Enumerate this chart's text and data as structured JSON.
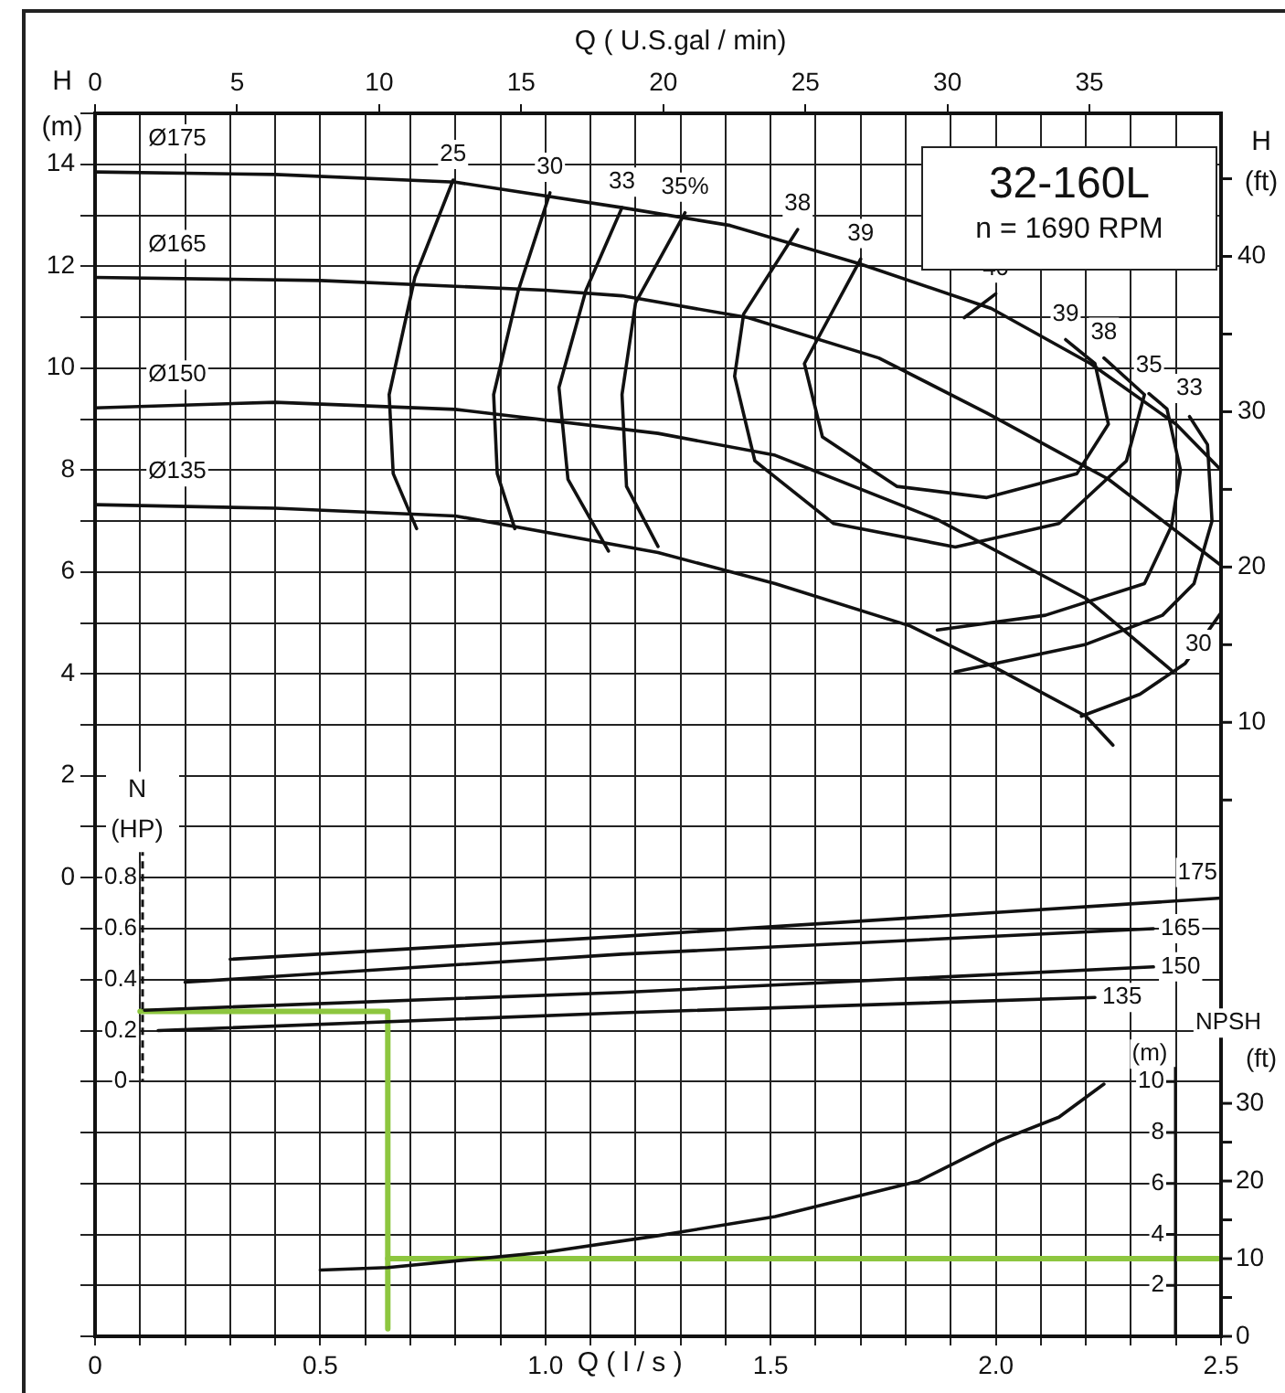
{
  "chart_data": [
    {
      "type": "line",
      "title": "32-160L",
      "subtitle": "n = 1690 RPM",
      "xlabel": "Q ( l / s )",
      "x2label": "Q ( U.S.gal / min)",
      "ylabel": "H (m)",
      "y2label": "H (ft)",
      "y3label": "N (HP)",
      "xlim": [
        0,
        2.5
      ],
      "xticks": [
        0,
        {
          "value": 0.1,
          "label": null
        },
        {
          "value": 0.2,
          "label": null
        },
        {
          "value": 0.3,
          "label": null
        },
        {
          "value": 0.4,
          "label": null
        },
        0.5,
        {
          "value": 0.6,
          "label": null
        },
        {
          "value": 0.7,
          "label": null
        },
        {
          "value": 0.8,
          "label": null
        },
        {
          "value": 0.9,
          "label": null
        },
        {
          "value": 1,
          "label": "1.0"
        },
        {
          "value": 1.1,
          "label": null
        },
        {
          "value": 1.2,
          "label": null
        },
        {
          "value": 1.3,
          "label": null
        },
        {
          "value": 1.4,
          "label": null
        },
        1.5,
        {
          "value": 1.6,
          "label": null
        },
        {
          "value": 1.7,
          "label": null
        },
        {
          "value": 1.8,
          "label": null
        },
        {
          "value": 1.9,
          "label": null
        },
        {
          "value": 2,
          "label": "2.0"
        },
        {
          "value": 2.1,
          "label": null
        },
        {
          "value": 2.2,
          "label": null
        },
        {
          "value": 2.3,
          "label": null
        },
        {
          "value": 2.4,
          "label": null
        },
        2.5
      ],
      "x2lim": [
        0,
        39.63
      ],
      "x2ticks": [
        0,
        5,
        10,
        15,
        20,
        25,
        30,
        35
      ],
      "ylim": [
        -9,
        15
      ],
      "yticks": [
        {
          "value": -9,
          "label": null
        },
        {
          "value": -8,
          "label": null
        },
        {
          "value": -7,
          "label": null
        },
        {
          "value": -6,
          "label": null
        },
        {
          "value": -5,
          "label": null
        },
        {
          "value": -4,
          "label": null
        },
        {
          "value": -3,
          "label": null
        },
        {
          "value": -2,
          "label": null
        },
        {
          "value": -1,
          "label": null
        },
        0,
        {
          "value": 1,
          "label": null
        },
        2,
        {
          "value": 3,
          "label": null
        },
        4,
        {
          "value": 5,
          "label": null
        },
        6,
        {
          "value": 7,
          "label": null
        },
        8,
        {
          "value": 9,
          "label": null
        },
        10,
        {
          "value": 11,
          "label": null
        },
        12,
        {
          "value": 13,
          "label": null
        },
        14,
        {
          "value": 15,
          "label": null
        }
      ],
      "y2lim": [
        -29.53,
        49.21
      ],
      "y2ticks": [
        {
          "value": 5,
          "label": null
        },
        10,
        {
          "value": 15,
          "label": null
        },
        20,
        {
          "value": 25,
          "label": null
        },
        30,
        {
          "value": 35,
          "label": null
        },
        40,
        {
          "value": 45,
          "label": null
        }
      ],
      "y3lim": [
        -1,
        3.8
      ],
      "y3ticks": [
        0,
        0.2,
        0.4,
        0.6,
        0.8
      ],
      "grid": true,
      "legend": false,
      "marker": "none",
      "line_style": "solid",
      "series": [
        {
          "name": "Ø175",
          "color": "#111111",
          "x": [
            0,
            0.4,
            0.8,
            1.17,
            1.41,
            1.7,
            1.99,
            2.21,
            2.4,
            2.5
          ],
          "values": [
            13.85,
            13.8,
            13.65,
            13.15,
            12.8,
            12.04,
            11.17,
            10.09,
            8.9,
            8.0
          ]
        },
        {
          "name": "Ø165",
          "color": "#111111",
          "x": [
            0,
            0.5,
            1.0,
            1.17,
            1.45,
            1.74,
            1.98,
            2.25,
            2.5
          ],
          "values": [
            11.78,
            11.72,
            11.53,
            11.42,
            10.99,
            10.2,
            9.12,
            7.82,
            6.13
          ]
        },
        {
          "name": "Ø150",
          "color": "#111111",
          "x": [
            0,
            0.4,
            0.8,
            1.25,
            1.51,
            1.87,
            2.2,
            2.39
          ],
          "values": [
            9.22,
            9.33,
            9.19,
            8.72,
            8.29,
            7.03,
            5.48,
            4.07
          ]
        },
        {
          "name": "Ø135",
          "color": "#111111",
          "x": [
            0,
            0.4,
            0.8,
            1.25,
            1.51,
            1.81,
            2.01,
            2.2,
            2.26
          ],
          "values": [
            7.32,
            7.25,
            7.1,
            6.38,
            5.77,
            4.94,
            4.07,
            3.17,
            2.6
          ]
        },
        {
          "name": "25",
          "color": "#111111",
          "x": [
            0.795,
            0.71,
            0.653,
            0.662,
            0.714
          ],
          "values": [
            13.69,
            11.78,
            9.48,
            7.93,
            6.85
          ]
        },
        {
          "name": "30",
          "color": "#111111",
          "x": [
            1.01,
            0.94,
            0.885,
            0.893,
            0.932
          ],
          "values": [
            13.44,
            11.53,
            9.48,
            7.93,
            6.85
          ]
        },
        {
          "name": "33",
          "color": "#111111",
          "x": [
            1.17,
            1.09,
            1.03,
            1.05,
            1.14
          ],
          "values": [
            13.15,
            11.53,
            9.62,
            7.82,
            6.41
          ]
        },
        {
          "name": "35%",
          "color": "#111111",
          "x": [
            1.31,
            1.2,
            1.17,
            1.18,
            1.25
          ],
          "values": [
            13.05,
            11.28,
            9.48,
            7.68,
            6.5
          ]
        },
        {
          "name": "38",
          "color": "#111111",
          "x": [
            1.56,
            1.44,
            1.42,
            1.465,
            1.64,
            1.91,
            2.14,
            2.29,
            2.33,
            2.24
          ],
          "values": [
            12.72,
            11.06,
            9.84,
            8.18,
            6.95,
            6.49,
            6.95,
            8.18,
            9.48,
            10.2
          ]
        },
        {
          "name": "39",
          "color": "#111111",
          "x": [
            1.7,
            1.575,
            1.615,
            1.78,
            1.98,
            2.18,
            2.25,
            2.22,
            2.155
          ],
          "values": [
            12.14,
            10.09,
            8.65,
            7.68,
            7.46,
            7.93,
            8.9,
            10.09,
            10.56
          ]
        },
        {
          "name": "40",
          "color": "#111111",
          "x": [
            2.0,
            1.93
          ],
          "values": [
            11.46,
            10.99
          ]
        },
        {
          "color": "#111111",
          "x": [
            1.87,
            2.11,
            2.33,
            2.39,
            2.41,
            2.38,
            2.34
          ],
          "values": [
            4.86,
            5.15,
            5.77,
            6.9,
            8.0,
            9.2,
            9.5
          ]
        },
        {
          "color": "#111111",
          "x": [
            1.91,
            2.2,
            2.37,
            2.44,
            2.48,
            2.47,
            2.43
          ],
          "values": [
            4.04,
            4.58,
            5.15,
            5.77,
            7.0,
            8.5,
            9.05
          ]
        },
        {
          "color": "#111111",
          "x": [
            2.19,
            2.32,
            2.42,
            2.5
          ],
          "values": [
            3.17,
            3.6,
            4.2,
            5.2
          ]
        },
        {
          "name": "175",
          "color": "#111111",
          "axis": "y3",
          "x": [
            0.3,
            1.17,
            2.5
          ],
          "values": [
            0.48,
            0.57,
            0.72
          ]
        },
        {
          "name": "165",
          "color": "#111111",
          "axis": "y3",
          "x": [
            0.2,
            1.17,
            2.35
          ],
          "values": [
            0.39,
            0.5,
            0.6
          ]
        },
        {
          "name": "150",
          "color": "#111111",
          "axis": "y3",
          "x": [
            0.11,
            1.17,
            2.35
          ],
          "values": [
            0.28,
            0.35,
            0.45
          ]
        },
        {
          "name": "135",
          "color": "#111111",
          "axis": "y3",
          "x": [
            0.14,
            1.17,
            2.22
          ],
          "values": [
            0.2,
            0.27,
            0.33
          ]
        },
        {
          "color": "#8dc63f",
          "axis": "y3",
          "x": [
            0.1,
            0.65,
            0.65
          ],
          "values": [
            0.275,
            0.275,
            -0.97
          ]
        }
      ],
      "annotations": [
        {
          "text": "35",
          "x": 2.34,
          "y": 10.05
        },
        {
          "text": "33",
          "x": 2.43,
          "y": 9.6
        },
        {
          "text": "30",
          "x": 2.45,
          "y": 4.58
        }
      ]
    },
    {
      "type": "line",
      "ylabel": "NPSH (m)",
      "y2label": "(ft)",
      "tick_labels": "y",
      "xlim": [
        0,
        2.5
      ],
      "ylim": [
        0,
        48
      ],
      "yticks": [
        2,
        4,
        6,
        8,
        10
      ],
      "y2lim": [
        0,
        157.48
      ],
      "y2ticks": [
        0,
        {
          "value": 5,
          "label": null
        },
        10,
        {
          "value": 15,
          "label": null
        },
        20,
        {
          "value": 25,
          "label": null
        },
        30
      ],
      "legend": false,
      "marker": "none",
      "line_style": "solid",
      "series": [
        {
          "color": "#111111",
          "x": [
            0.5,
            0.65,
            1.0,
            1.25,
            1.51,
            1.83,
            2.01,
            2.14,
            2.24
          ],
          "values": [
            2.6,
            2.7,
            3.3,
            3.95,
            4.7,
            6.1,
            7.7,
            8.6,
            9.9
          ]
        },
        {
          "color": "#8dc63f",
          "x": [
            0.65,
            2.5
          ],
          "values": [
            3.05,
            3.05
          ]
        }
      ]
    }
  ]
}
